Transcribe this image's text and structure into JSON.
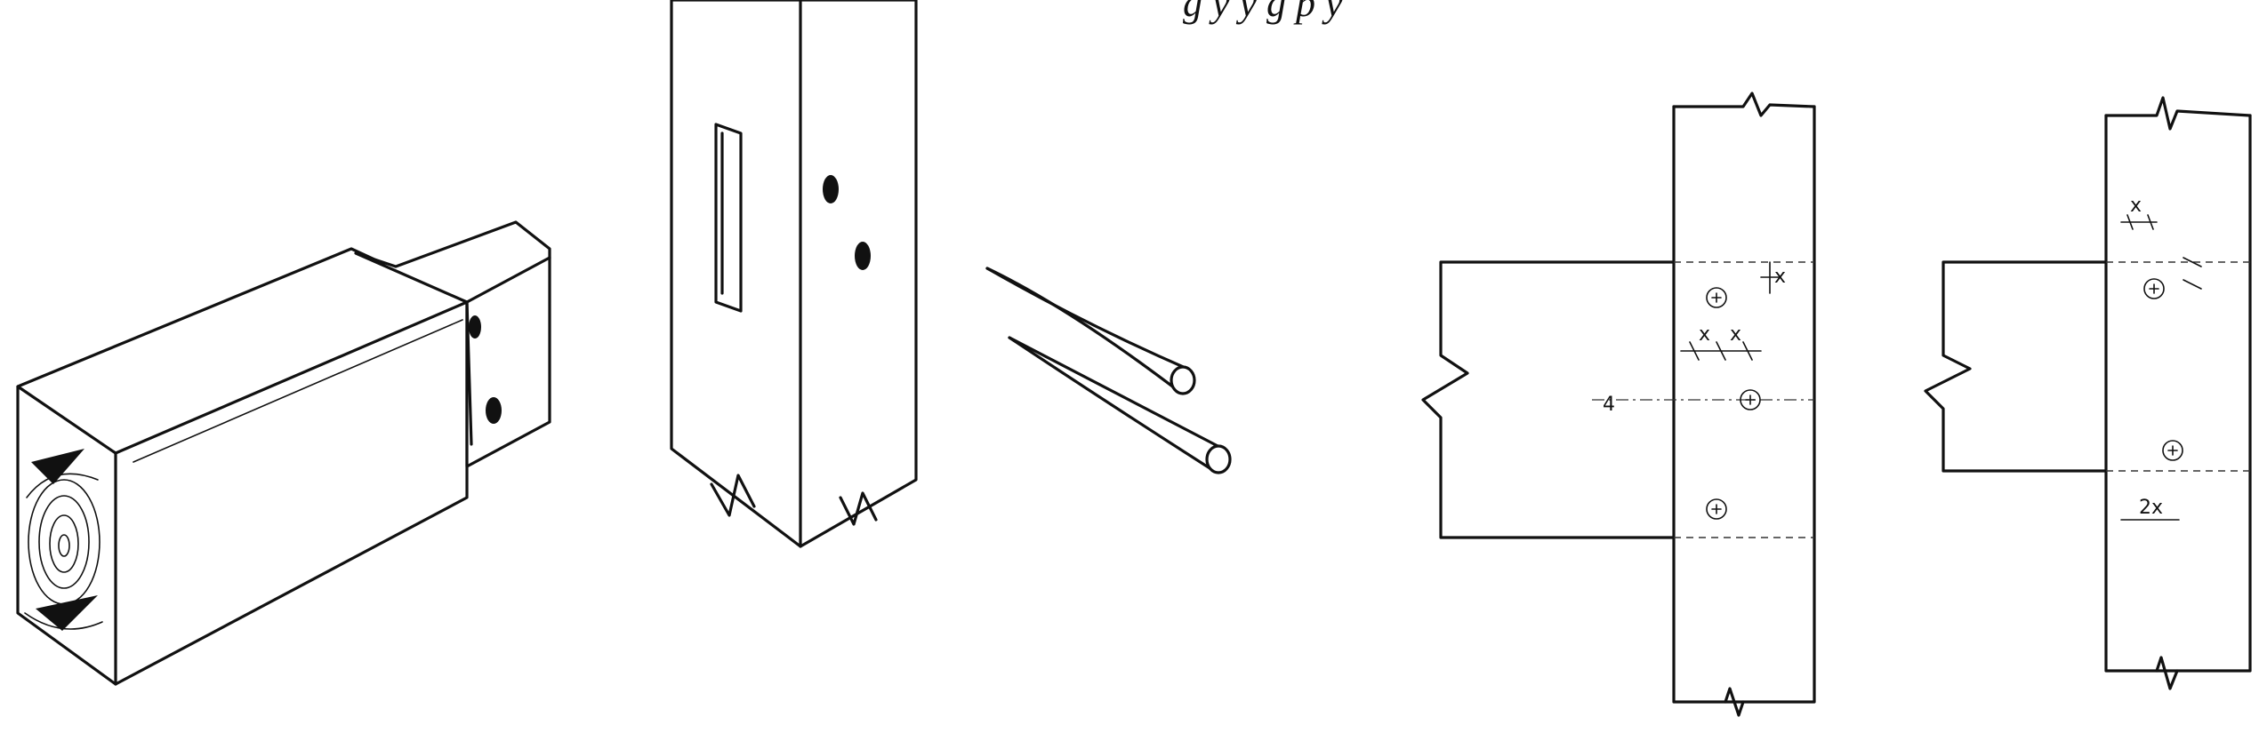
{
  "caption": "g       y   y       g   p       y",
  "dimension_marks": {
    "x": "x",
    "x_2": "2x",
    "x_4": "4"
  }
}
